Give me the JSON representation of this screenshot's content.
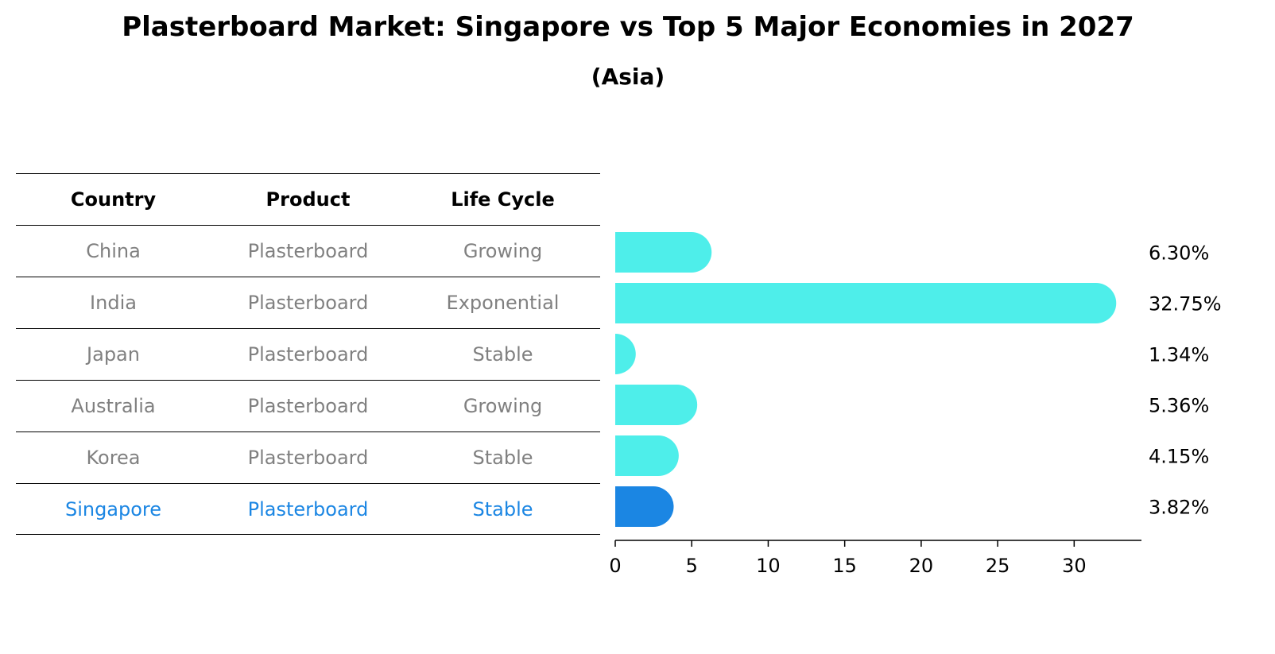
{
  "title": "Plasterboard Market: Singapore vs Top 5 Major Economies in 2027",
  "subtitle": "(Asia)",
  "table": {
    "headers": [
      "Country",
      "Product",
      "Life Cycle"
    ],
    "rows": [
      [
        "China",
        "Plasterboard",
        "Growing"
      ],
      [
        "India",
        "Plasterboard",
        "Exponential"
      ],
      [
        "Japan",
        "Plasterboard",
        "Stable"
      ],
      [
        "Australia",
        "Plasterboard",
        "Growing"
      ],
      [
        "Korea",
        "Plasterboard",
        "Stable"
      ],
      [
        "Singapore",
        "Plasterboard",
        "Stable"
      ]
    ]
  },
  "colors": {
    "bar": "#4eeeea",
    "highlight": "#1b86e3",
    "text_muted": "#808080"
  },
  "chart_data": {
    "type": "bar",
    "orientation": "horizontal",
    "categories": [
      "China",
      "India",
      "Japan",
      "Australia",
      "Korea",
      "Singapore"
    ],
    "values": [
      6.3,
      32.75,
      1.34,
      5.36,
      4.15,
      3.82
    ],
    "labels": [
      "6.30%",
      "32.75%",
      "1.34%",
      "5.36%",
      "4.15%",
      "3.82%"
    ],
    "highlight": "Singapore",
    "xlim": [
      0,
      34.4
    ],
    "xticks": [
      0,
      5,
      10,
      15,
      20,
      25,
      30
    ],
    "xlabel": "",
    "ylabel": ""
  }
}
